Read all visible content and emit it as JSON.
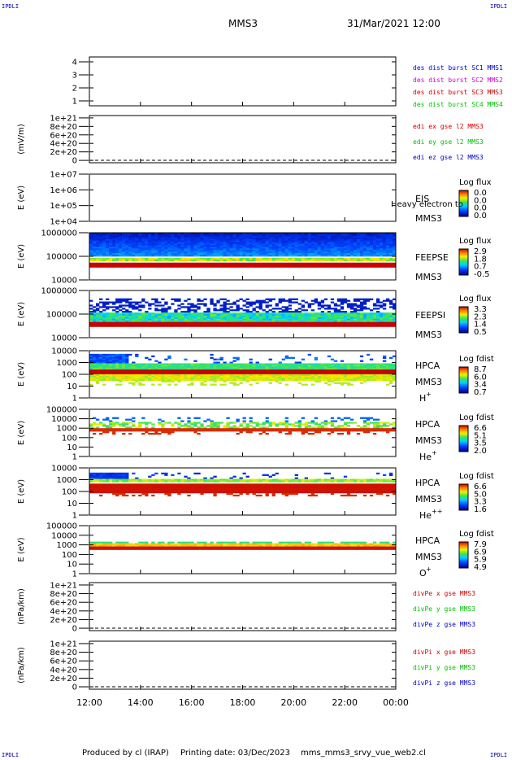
{
  "corner_label": "IPDLI",
  "header": {
    "spacecraft": "MMS3",
    "datetime": "31/Mar/2021 12:00"
  },
  "footer": {
    "produced_by": "Produced by cl (IRAP)",
    "printing_date": "Printing date: 03/Dec/2023",
    "filename": "mms_mms3_srvy_vue_web2.cl"
  },
  "colors": {
    "blue": "#0000c8",
    "magenta": "#d000d0",
    "red": "#d00000",
    "green": "#00c000",
    "dashed": "#000000"
  },
  "chart_data": [
    {
      "type": "line",
      "panel": "dist",
      "ylabel": "",
      "yticks": [
        "1",
        "2",
        "3",
        "4"
      ],
      "ylim": [
        0.6,
        4.4
      ],
      "legend": [
        {
          "label": "des dist burst SC1 MMS1",
          "color": "#0000c8"
        },
        {
          "label": "des dist burst SC2 MMS2",
          "color": "#d000d0"
        },
        {
          "label": "des dist burst SC3 MMS3",
          "color": "#d00000"
        },
        {
          "label": "des dist burst SC4 MMS4",
          "color": "#00c000"
        }
      ]
    },
    {
      "type": "line",
      "panel": "edi",
      "ylabel": "(mV/m)",
      "yticks": [
        "0",
        "2e+20",
        "4e+20",
        "6e+20",
        "8e+20",
        "1e+21"
      ],
      "legend": [
        {
          "label": "edi ex gse l2 MMS3",
          "color": "#d00000"
        },
        {
          "label": "edi ey gse l2 MMS3",
          "color": "#00c000"
        },
        {
          "label": "edi ez gse l2 MMS3",
          "color": "#0000c8"
        }
      ]
    },
    {
      "type": "heatmap",
      "panel": "eis",
      "ylabel": "E (eV)",
      "yticks": [
        "1e+04",
        "1e+05",
        "1e+06",
        "1e+07"
      ],
      "yscale": "log",
      "labels": [
        "EIS",
        "MMS3"
      ],
      "note": "Heavy electron to",
      "colorbar": {
        "title": "Log flux",
        "ticks": [
          "0.0",
          "0.0",
          "0.0",
          "0.0"
        ]
      }
    },
    {
      "type": "heatmap",
      "panel": "feepse",
      "ylabel": "E (eV)",
      "yticks": [
        "10000",
        "100000",
        "1000000"
      ],
      "yscale": "log",
      "labels": [
        "FEEPSE",
        "MMS3"
      ],
      "colorbar": {
        "title": "Log flux",
        "ticks": [
          "2.9",
          "1.8",
          "0.7",
          "-0.5"
        ]
      }
    },
    {
      "type": "heatmap",
      "panel": "feepsi",
      "ylabel": "E (eV)",
      "yticks": [
        "10000",
        "100000",
        "1000000"
      ],
      "yscale": "log",
      "labels": [
        "FEEPSI",
        "MMS3"
      ],
      "colorbar": {
        "title": "Log flux",
        "ticks": [
          "3.3",
          "2.3",
          "1.4",
          "0.5"
        ]
      }
    },
    {
      "type": "heatmap",
      "panel": "hpca_h",
      "ylabel": "E (eV)",
      "yticks": [
        "1",
        "10",
        "100",
        "1000",
        "10000"
      ],
      "yscale": "log",
      "labels": [
        "HPCA",
        "MMS3"
      ],
      "species": "H",
      "species_sup": "+",
      "colorbar": {
        "title": "Log fdist",
        "ticks": [
          "8.7",
          "6.0",
          "3.4",
          "0.7"
        ]
      }
    },
    {
      "type": "heatmap",
      "panel": "hpca_he",
      "ylabel": "E (eV)",
      "yticks": [
        "1",
        "10",
        "100",
        "1000",
        "10000",
        "100000"
      ],
      "yscale": "log",
      "labels": [
        "HPCA",
        "MMS3"
      ],
      "species": "He",
      "species_sup": "+",
      "colorbar": {
        "title": "Log fdist",
        "ticks": [
          "6.6",
          "5.1",
          "3.5",
          "2.0"
        ]
      }
    },
    {
      "type": "heatmap",
      "panel": "hpca_hepp",
      "ylabel": "E (eV)",
      "yticks": [
        "1",
        "10",
        "100",
        "1000",
        "10000"
      ],
      "yscale": "log",
      "labels": [
        "HPCA",
        "MMS3"
      ],
      "species": "He",
      "species_sup": "++",
      "colorbar": {
        "title": "Log fdist",
        "ticks": [
          "6.6",
          "5.0",
          "3.3",
          "1.6"
        ]
      }
    },
    {
      "type": "heatmap",
      "panel": "hpca_o",
      "ylabel": "E (eV)",
      "yticks": [
        "1",
        "10",
        "100",
        "1000",
        "10000",
        "100000"
      ],
      "yscale": "log",
      "labels": [
        "HPCA",
        "MMS3"
      ],
      "species": "O",
      "species_sup": "+",
      "colorbar": {
        "title": "Log fdist",
        "ticks": [
          "7.9",
          "6.9",
          "5.9",
          "4.9"
        ]
      }
    },
    {
      "type": "line",
      "panel": "divpe",
      "ylabel": "(nPa/km)",
      "yticks": [
        "0",
        "2e+20",
        "4e+20",
        "6e+20",
        "8e+20",
        "1e+21"
      ],
      "legend": [
        {
          "label": "divPe x gse MMS3",
          "color": "#d00000"
        },
        {
          "label": "divPe y gse MMS3",
          "color": "#00c000"
        },
        {
          "label": "divPe z gse MMS3",
          "color": "#0000c8"
        }
      ]
    },
    {
      "type": "line",
      "panel": "divpi",
      "ylabel": "(nPa/km)",
      "yticks": [
        "0",
        "2e+20",
        "4e+20",
        "6e+20",
        "8e+20",
        "1e+21"
      ],
      "legend": [
        {
          "label": "divPi x gse MMS3",
          "color": "#d00000"
        },
        {
          "label": "divPi y gse MMS3",
          "color": "#00c000"
        },
        {
          "label": "divPi z gse MMS3",
          "color": "#0000c8"
        }
      ]
    }
  ],
  "time_axis": {
    "ticks": [
      "12:00",
      "14:00",
      "16:00",
      "18:00",
      "20:00",
      "22:00",
      "00:00"
    ]
  }
}
